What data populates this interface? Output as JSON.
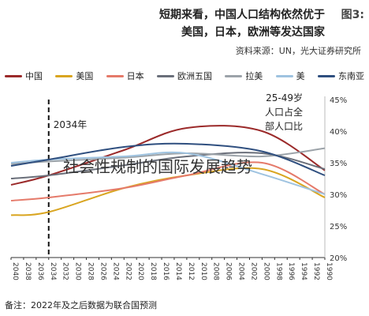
{
  "figure_tag": "图3:",
  "title_line1": "短期来看，中国人口结构依然优于",
  "title_line2": "美国，日本，欧洲等发达国家",
  "source": "资料来源：UN，光大证券研究所",
  "note": "备注：2022年及之后数据为联合国预测",
  "overlay_text": "社会性规制的国际发展趋势",
  "chart_data": {
    "type": "line",
    "title": "",
    "xlabel": "",
    "ylabel": "",
    "x": [
      1990,
      2000,
      2012,
      2022,
      2034,
      2040
    ],
    "x_ticks": [
      "1990",
      "1992",
      "1994",
      "1996",
      "1998",
      "2000",
      "2002",
      "2004",
      "2006",
      "2008",
      "2010",
      "2012",
      "2014",
      "2016",
      "2018",
      "2020",
      "2022",
      "2024",
      "2026",
      "2028",
      "2030",
      "2032",
      "2034",
      "2036",
      "2038",
      "2040"
    ],
    "x_direction": "reversed",
    "y_ticks": [
      "20%",
      "25%",
      "30%",
      "35%",
      "40%",
      "45%"
    ],
    "ylim": [
      20,
      45
    ],
    "grid": false,
    "legend_position": "top",
    "annotations": {
      "vline_label": "2034年",
      "vline_x": 2034,
      "right_label": "25-49岁人口占全部人口比"
    },
    "series": [
      {
        "name": "中国",
        "color": "#9b2a2a",
        "values": [
          33.8,
          40.0,
          40.5,
          37.0,
          33.0,
          31.5
        ]
      },
      {
        "name": "美国",
        "color": "#d9a520",
        "values": [
          29.5,
          34.0,
          33.0,
          31.0,
          27.2,
          26.7
        ]
      },
      {
        "name": "日本",
        "color": "#e57a6a",
        "values": [
          30.0,
          35.0,
          33.0,
          31.0,
          29.5,
          29.0
        ]
      },
      {
        "name": "欧洲五国",
        "color": "#6a6f7a",
        "values": [
          34.0,
          36.5,
          36.0,
          34.6,
          33.0,
          32.5
        ]
      },
      {
        "name": "拉美",
        "color": "#9ca3a9",
        "values": [
          37.3,
          36.0,
          36.5,
          35.8,
          35.2,
          34.8
        ]
      },
      {
        "name": "美",
        "color": "#9fc3e0",
        "values": [
          30.0,
          33.2,
          36.5,
          36.0,
          35.5,
          35.0
        ]
      },
      {
        "name": "东南亚",
        "color": "#2f4f7f",
        "values": [
          33.0,
          36.8,
          38.0,
          37.5,
          35.5,
          34.5
        ]
      }
    ]
  }
}
